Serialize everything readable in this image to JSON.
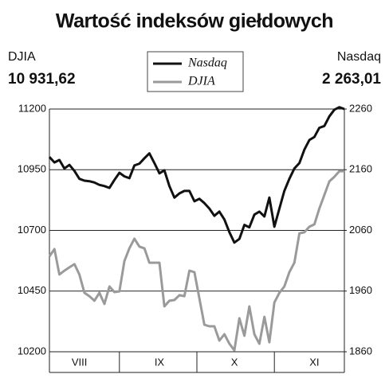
{
  "chart_data": {
    "type": "line",
    "title": "Wartość indeksów giełdowych",
    "categories": [
      null,
      null,
      null,
      null,
      null,
      null,
      "VIII",
      null,
      null,
      null,
      null,
      null,
      null,
      null,
      null,
      null,
      null,
      null,
      null,
      null,
      null,
      null,
      "IX",
      null,
      null,
      null,
      null,
      null,
      null,
      null,
      null,
      null,
      null,
      null,
      null,
      null,
      null,
      "X",
      null,
      null,
      null,
      null,
      null,
      null,
      null,
      null,
      null,
      null,
      null,
      null,
      null,
      null,
      null,
      "XI",
      null,
      null,
      null,
      null,
      null,
      null
    ],
    "series": [
      {
        "name": "Nasdaq",
        "color": "#111111",
        "axis": "y2",
        "latest_label": "2 263,01",
        "values": [
          2181,
          2172,
          2176,
          2162,
          2168,
          2158,
          2145,
          2142,
          2141,
          2139,
          2135,
          2133,
          2130,
          2143,
          2155,
          2149,
          2146,
          2167,
          2170,
          2179,
          2187,
          2171,
          2154,
          2159,
          2133,
          2114,
          2121,
          2125,
          2125,
          2108,
          2112,
          2105,
          2096,
          2084,
          2091,
          2078,
          2057,
          2040,
          2046,
          2069,
          2065,
          2086,
          2091,
          2083,
          2114,
          2066,
          2096,
          2125,
          2145,
          2162,
          2171,
          2193,
          2209,
          2214,
          2229,
          2232,
          2248,
          2259,
          2263,
          2260
        ]
      },
      {
        "name": "DJIA",
        "color": "#9a9a9a",
        "axis": "y",
        "latest_label": "10 931,62",
        "values": [
          10593,
          10623,
          10518,
          10534,
          10548,
          10561,
          10518,
          10443,
          10429,
          10410,
          10443,
          10397,
          10469,
          10446,
          10449,
          10574,
          10626,
          10666,
          10633,
          10626,
          10567,
          10567,
          10567,
          10387,
          10410,
          10413,
          10433,
          10429,
          10534,
          10528,
          10420,
          10311,
          10305,
          10305,
          10246,
          10272,
          10233,
          10206,
          10338,
          10266,
          10387,
          10272,
          10233,
          10344,
          10239,
          10403,
          10443,
          10469,
          10528,
          10567,
          10688,
          10692,
          10715,
          10725,
          10790,
          10846,
          10902,
          10921,
          10944,
          10944
        ]
      }
    ],
    "ylim": [
      10200,
      11200
    ],
    "yticks": [
      10200,
      10450,
      10700,
      10950,
      11200
    ],
    "y2lim": [
      1860,
      2260
    ],
    "y2ticks": [
      1860,
      1960,
      2060,
      2160,
      2260
    ],
    "grid": true
  }
}
